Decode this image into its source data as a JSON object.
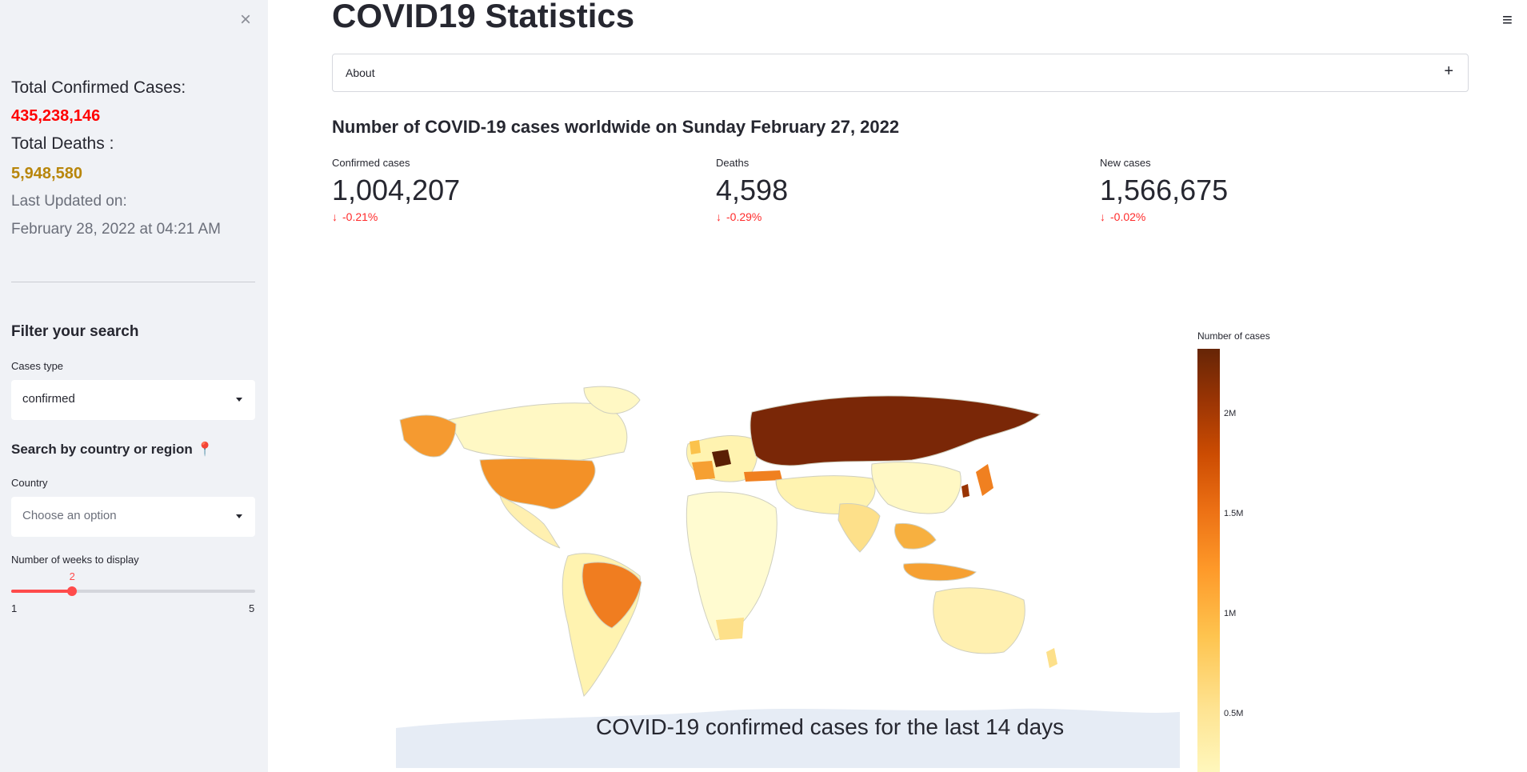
{
  "sidebar": {
    "close_glyph": "×",
    "total_confirmed_label": "Total Confirmed Cases:",
    "total_confirmed_value": "435,238,146",
    "total_deaths_label": "Total Deaths :",
    "total_deaths_value": "5,948,580",
    "last_updated_label": "Last Updated on:",
    "last_updated_value": "February 28, 2022 at 04:21 AM",
    "filter_heading": "Filter your search",
    "cases_type_label": "Cases type",
    "cases_type_value": "confirmed",
    "search_heading": "Search by country or region 📍",
    "country_label": "Country",
    "country_placeholder": "Choose an option",
    "weeks_label": "Number of weeks to display",
    "weeks_value": "2",
    "weeks_min": "1",
    "weeks_max": "5",
    "weeks_fraction": 0.25
  },
  "main": {
    "title": "COVID19 Statistics",
    "menu_glyph": "≡",
    "expander_label": "About",
    "expander_glyph": "+",
    "subheading": "Number of COVID-19 cases worldwide on Sunday February 27, 2022",
    "metrics": [
      {
        "label": "Confirmed cases",
        "value": "1,004,207",
        "delta": "-0.21%"
      },
      {
        "label": "Deaths",
        "value": "4,598",
        "delta": "-0.29%"
      },
      {
        "label": "New cases",
        "value": "1,566,675",
        "delta": "-0.02%"
      }
    ],
    "delta_arrow": "↓"
  },
  "map": {
    "caption": "COVID-19 confirmed cases for the last 14 days",
    "colorbar_title": "Number of cases",
    "colorbar_ticks": [
      "2M",
      "1.5M",
      "1M",
      "0.5M"
    ]
  },
  "colors": {
    "accent": "#ff4b4b",
    "confirmed": "#ff0000",
    "deaths": "#b8860b",
    "russia": "#7a2707",
    "brazil_us": "#f08020",
    "light": "#fff8c4"
  }
}
